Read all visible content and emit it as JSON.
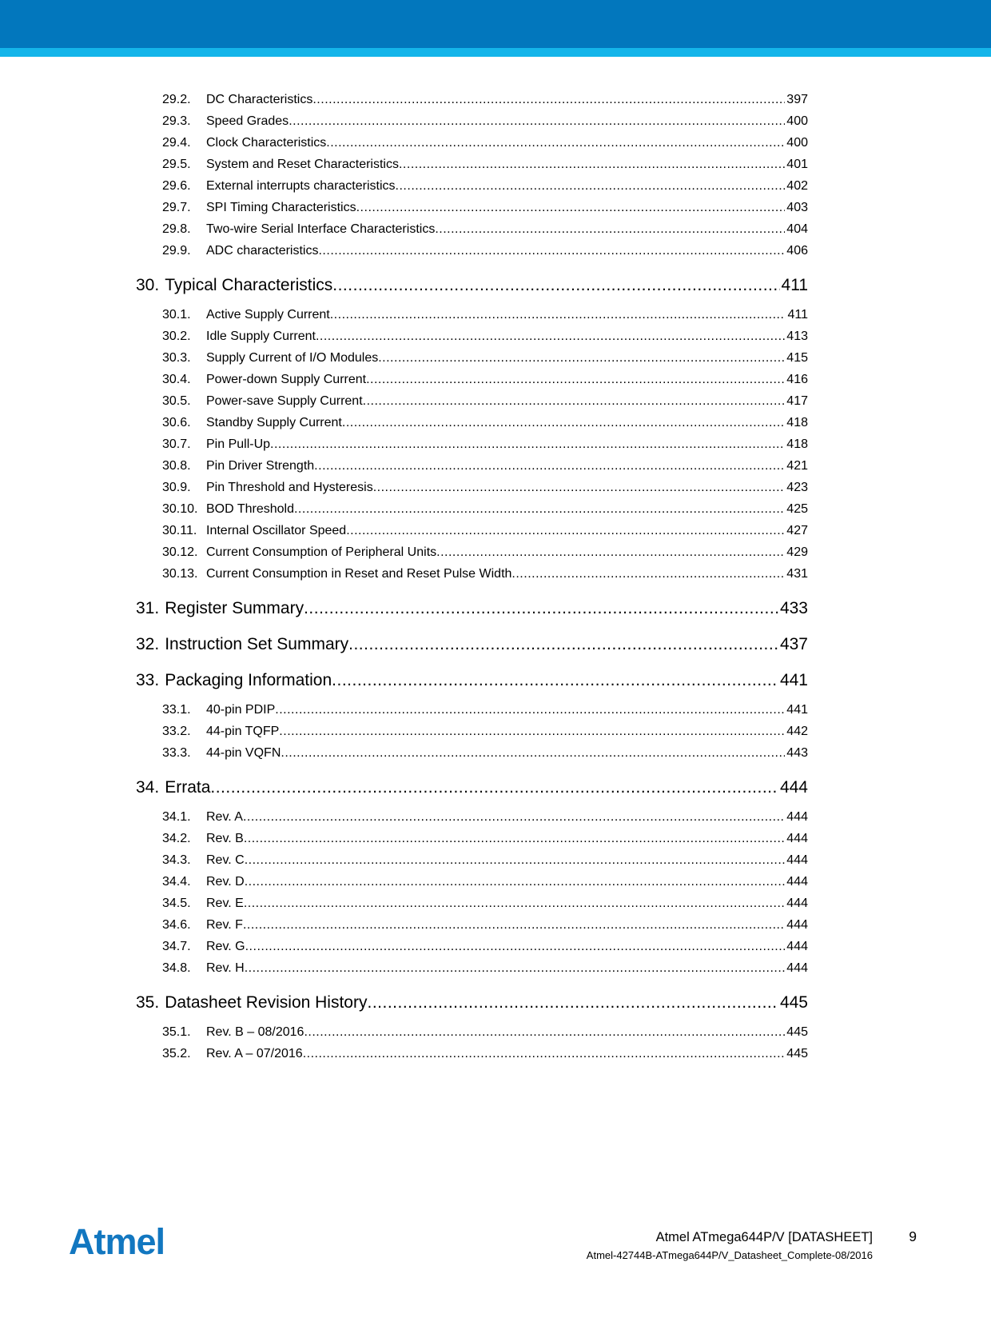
{
  "header": {
    "primary_color": "#0277bd",
    "accent_color": "#14b5ea"
  },
  "toc": {
    "groups": [
      {
        "entries": [
          {
            "num": "29.2.",
            "title": "DC Characteristics",
            "page": "397"
          },
          {
            "num": "29.3.",
            "title": "Speed Grades",
            "page": "400"
          },
          {
            "num": "29.4.",
            "title": "Clock Characteristics",
            "page": "400"
          },
          {
            "num": "29.5.",
            "title": "System and Reset Characteristics",
            "page": "401"
          },
          {
            "num": "29.6.",
            "title": "External interrupts characteristics",
            "page": "402"
          },
          {
            "num": "29.7.",
            "title": "SPI Timing Characteristics",
            "page": "403"
          },
          {
            "num": "29.8.",
            "title": "Two-wire Serial Interface Characteristics",
            "page": "404"
          },
          {
            "num": "29.9.",
            "title": "ADC characteristics",
            "page": "406"
          }
        ]
      },
      {
        "heading": {
          "num": "30.",
          "title": "Typical Characteristics",
          "page": "411"
        },
        "entries": [
          {
            "num": "30.1.",
            "title": "Active Supply Current",
            "page": "411"
          },
          {
            "num": "30.2.",
            "title": "Idle Supply Current",
            "page": "413"
          },
          {
            "num": "30.3.",
            "title": "Supply Current of I/O Modules",
            "page": "415"
          },
          {
            "num": "30.4.",
            "title": "Power-down Supply Current",
            "page": "416"
          },
          {
            "num": "30.5.",
            "title": "Power-save Supply Current",
            "page": "417"
          },
          {
            "num": "30.6.",
            "title": "Standby Supply Current",
            "page": "418"
          },
          {
            "num": "30.7.",
            "title": "Pin Pull-Up",
            "page": "418"
          },
          {
            "num": "30.8.",
            "title": "Pin Driver Strength",
            "page": "421"
          },
          {
            "num": "30.9.",
            "title": "Pin Threshold and Hysteresis",
            "page": "423"
          },
          {
            "num": "30.10.",
            "title": "BOD Threshold",
            "page": "425"
          },
          {
            "num": "30.11.",
            "title": "Internal Oscillator Speed",
            "page": "427"
          },
          {
            "num": "30.12.",
            "title": "Current Consumption of Peripheral Units",
            "page": "429"
          },
          {
            "num": "30.13.",
            "title": "Current Consumption in Reset and Reset Pulse Width",
            "page": "431"
          }
        ]
      },
      {
        "heading": {
          "num": "31.",
          "title": "Register Summary",
          "page": "433"
        },
        "entries": []
      },
      {
        "heading": {
          "num": "32.",
          "title": "Instruction Set Summary",
          "page": "437"
        },
        "entries": []
      },
      {
        "heading": {
          "num": "33.",
          "title": "Packaging Information",
          "page": "441"
        },
        "entries": [
          {
            "num": "33.1.",
            "title": "40-pin PDIP",
            "page": "441"
          },
          {
            "num": "33.2.",
            "title": "44-pin TQFP",
            "page": "442"
          },
          {
            "num": "33.3.",
            "title": "44-pin VQFN",
            "page": "443"
          }
        ]
      },
      {
        "heading": {
          "num": "34.",
          "title": "Errata",
          "page": "444"
        },
        "entries": [
          {
            "num": "34.1.",
            "title": "Rev. A",
            "page": "444"
          },
          {
            "num": "34.2.",
            "title": "Rev. B",
            "page": "444"
          },
          {
            "num": "34.3.",
            "title": "Rev. C",
            "page": "444"
          },
          {
            "num": "34.4.",
            "title": "Rev. D",
            "page": "444"
          },
          {
            "num": "34.5.",
            "title": "Rev. E",
            "page": "444"
          },
          {
            "num": "34.6.",
            "title": "Rev. F",
            "page": "444"
          },
          {
            "num": "34.7.",
            "title": "Rev. G",
            "page": "444"
          },
          {
            "num": "34.8.",
            "title": "Rev. H",
            "page": "444"
          }
        ]
      },
      {
        "heading": {
          "num": "35.",
          "title": "Datasheet Revision History",
          "page": "445"
        },
        "entries": [
          {
            "num": "35.1.",
            "title": "Rev. B – 08/2016",
            "page": "445"
          },
          {
            "num": "35.2.",
            "title": "Rev. A – 07/2016",
            "page": "445"
          }
        ]
      }
    ]
  },
  "footer": {
    "logo_text": "Atmel",
    "logo_color": "#1277c0",
    "doc_title": "Atmel ATmega644P/V [DATASHEET]",
    "page_number": "9",
    "doc_id": "Atmel-42744B-ATmega644P/V_Datasheet_Complete-08/2016"
  }
}
